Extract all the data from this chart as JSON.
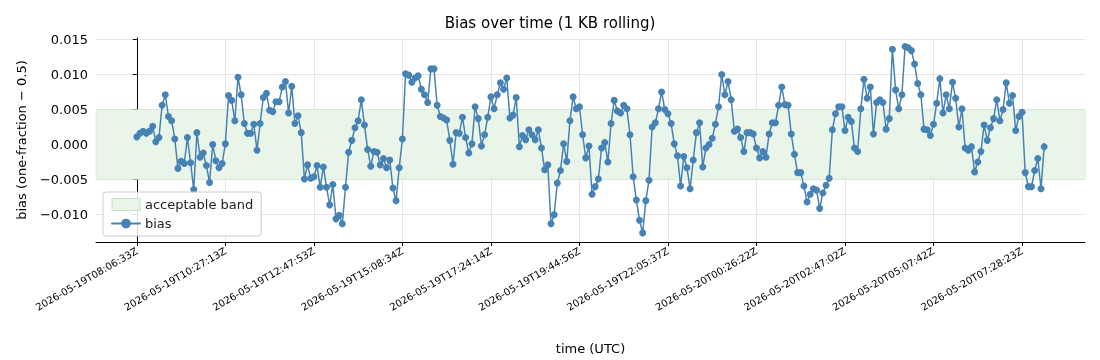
{
  "chart_data": {
    "type": "line",
    "title": "Bias over time (1 KB rolling)",
    "xlabel": "time (UTC)",
    "ylabel": "bias (one-fraction − 0.5)",
    "categories": [
      "2026-05-19T08:06:33Z",
      null,
      null,
      null,
      null,
      null,
      null,
      null,
      null,
      null,
      null,
      null,
      null,
      null,
      null,
      null,
      null,
      null,
      null,
      null,
      null,
      null,
      null,
      null,
      null,
      null,
      null,
      null,
      "2026-05-19T10:27:13Z",
      null,
      null,
      null,
      null,
      null,
      null,
      null,
      null,
      null,
      null,
      null,
      null,
      null,
      null,
      null,
      null,
      null,
      null,
      null,
      null,
      null,
      null,
      null,
      null,
      null,
      null,
      null,
      "2026-05-19T12:47:53Z",
      null,
      null,
      null,
      null,
      null,
      null,
      null,
      null,
      null,
      null,
      null,
      null,
      null,
      null,
      null,
      null,
      null,
      null,
      null,
      null,
      null,
      null,
      null,
      null,
      null,
      null,
      null,
      "2026-05-19T15:08:34Z",
      null,
      null,
      null,
      null,
      null,
      null,
      null,
      null,
      null,
      null,
      null,
      null,
      null,
      null,
      null,
      null,
      null,
      null,
      null,
      null,
      null,
      null,
      null,
      null,
      null,
      null,
      null,
      "2026-05-19T17:24:14Z",
      null,
      null,
      null,
      null,
      null,
      null,
      null,
      null,
      null,
      null,
      null,
      null,
      null,
      null,
      null,
      null,
      null,
      null,
      null,
      null,
      null,
      null,
      null,
      null,
      null,
      null,
      null,
      "2026-05-19T19:44:56Z",
      null,
      null,
      null,
      null,
      null,
      null,
      null,
      null,
      null,
      null,
      null,
      null,
      null,
      null,
      null,
      null,
      null,
      null,
      null,
      null,
      null,
      null,
      null,
      null,
      null,
      null,
      null,
      "2026-05-19T22:05:37Z",
      null,
      null,
      null,
      null,
      null,
      null,
      null,
      null,
      null,
      null,
      null,
      null,
      null,
      null,
      null,
      null,
      null,
      null,
      null,
      null,
      null,
      null,
      null,
      null,
      null,
      null,
      null,
      "2026-05-20T00:26:22Z",
      null,
      null,
      null,
      null,
      null,
      null,
      null,
      null,
      null,
      null,
      null,
      null,
      null,
      null,
      null,
      null,
      null,
      null,
      null,
      null,
      null,
      null,
      null,
      null,
      null,
      null,
      null,
      "2026-05-20T02:47:02Z",
      null,
      null,
      null,
      null,
      null,
      null,
      null,
      null,
      null,
      null,
      null,
      null,
      null,
      null,
      null,
      null,
      null,
      null,
      null,
      null,
      null,
      null,
      null,
      null,
      null,
      null,
      null,
      "2026-05-20T05:07:42Z",
      null,
      null,
      null,
      null,
      null,
      null,
      null,
      null,
      null,
      null,
      null,
      null,
      null,
      null,
      null,
      null,
      null,
      null,
      null,
      null,
      null,
      null,
      null,
      null,
      null,
      null,
      null,
      "2026-05-20T07:28:23Z",
      null,
      null,
      null,
      null,
      null,
      null,
      null
    ],
    "series": [
      {
        "name": "bias",
        "color": "#4682b4",
        "values": [
          0.0011,
          0.0016,
          0.0019,
          0.0016,
          0.0019,
          0.0026,
          0.0004,
          0.001,
          0.0056,
          0.0071,
          0.004,
          0.0034,
          0.0008,
          -0.0034,
          -0.0024,
          -0.0027,
          0.001,
          -0.0026,
          -0.0064,
          0.0017,
          -0.0018,
          -0.0012,
          -0.003,
          -0.0054,
          0,
          -0.0023,
          -0.0033,
          -0.0027,
          0.0001,
          0.007,
          0.0063,
          0.0034,
          0.0096,
          0.0071,
          0.003,
          0.0016,
          0.0016,
          0.0029,
          -0.0008,
          0.003,
          0.0067,
          0.0073,
          0.0049,
          0.0047,
          0.0061,
          0.0061,
          0.0082,
          0.009,
          0.0045,
          0.0083,
          0.003,
          0.0041,
          0.0017,
          -0.0049,
          -0.0029,
          -0.0048,
          -0.0046,
          -0.003,
          -0.0061,
          -0.0032,
          -0.0061,
          -0.0086,
          -0.0057,
          -0.0106,
          -0.0101,
          -0.0113,
          -0.0061,
          -0.0011,
          0.0006,
          0.0024,
          0.0034,
          0.0064,
          0.0028,
          -0.0007,
          -0.0031,
          -0.001,
          -0.0011,
          -0.0029,
          -0.002,
          -0.0033,
          -0.0022,
          -0.0062,
          -0.008,
          -0.0033,
          0.0008,
          0.0101,
          0.0099,
          0.0089,
          0.0095,
          0.0098,
          0.0079,
          0.0071,
          0.006,
          0.0108,
          0.0108,
          0.0056,
          0.004,
          0.0038,
          0.0035,
          0.0006,
          -0.0028,
          0.0017,
          0.0016,
          0.0039,
          0.001,
          -0.0012,
          0.0001,
          0.0054,
          0.0037,
          -0.0002,
          0.0014,
          0.0039,
          0.0068,
          0.0051,
          0.0071,
          0.0088,
          0.0079,
          0.0095,
          0.0038,
          0.0042,
          0.0067,
          -0.0003,
          0.0013,
          0.0007,
          0.0021,
          0.0014,
          0.0007,
          0.0021,
          -0.0005,
          -0.0036,
          -0.0029,
          -0.0113,
          -0.01,
          -0.0055,
          -0.0037,
          0.0001,
          -0.0024,
          0.0034,
          0.0068,
          0.0051,
          0.0054,
          0.0014,
          -0.0019,
          -0.0002,
          -0.0071,
          -0.006,
          -0.0049,
          -0.0005,
          0.0003,
          -0.0025,
          0.003,
          0.0063,
          0.0048,
          0.0045,
          0.0056,
          0.0051,
          0.0014,
          -0.0046,
          -0.0079,
          -0.0108,
          -0.0126,
          -0.008,
          -0.0051,
          0.0025,
          0.0031,
          0.0051,
          0.0075,
          0.005,
          0.0044,
          0.003,
          0.0001,
          -0.0016,
          -0.0059,
          -0.0017,
          -0.0033,
          -0.0063,
          -0.0022,
          0.0017,
          0.0031,
          -0.0032,
          -0.0005,
          0,
          0.0009,
          0.0029,
          0.0054,
          0.01,
          0.0071,
          0.009,
          0.0064,
          0.0019,
          0.0022,
          0.001,
          -0.001,
          0.0017,
          0.0017,
          0.0015,
          -0.0005,
          -0.0019,
          -0.001,
          -0.0018,
          0.0015,
          0.0031,
          0.0031,
          0.0056,
          0.0082,
          0.0057,
          0.0056,
          0.0015,
          -0.0014,
          -0.004,
          -0.004,
          -0.0059,
          -0.0082,
          -0.0071,
          -0.0063,
          -0.0065,
          -0.0091,
          -0.0069,
          -0.0058,
          -0.0048,
          0.0021,
          0.0044,
          0.0054,
          0.0054,
          0.002,
          0.0039,
          0.0033,
          -0.0005,
          -0.001,
          0.0051,
          0.0093,
          0.0066,
          0.0082,
          0.0015,
          0.006,
          0.0064,
          0.006,
          0.0022,
          0.0037,
          0.0136,
          0.0078,
          0.0051,
          0.0071,
          0.014,
          0.0138,
          0.0134,
          0.0115,
          0.0087,
          0.0071,
          0.0022,
          0.0021,
          0.0013,
          0.0029,
          0.0059,
          0.0094,
          0.0045,
          0.0071,
          0.0051,
          0.0089,
          0.0066,
          0.0025,
          0.0051,
          -0.0005,
          -0.0008,
          -0.0003,
          -0.0039,
          -0.0025,
          -0.001,
          0.0028,
          0.0006,
          0.0024,
          0.0037,
          0.0064,
          0.0034,
          0.005,
          0.0088,
          0.0059,
          0.007,
          0.002,
          0.004,
          0.0046,
          -0.004,
          -0.006,
          -0.006,
          -0.0037,
          -0.002,
          -0.0063,
          -0.0003
        ]
      }
    ],
    "bands": [
      {
        "axis": "y",
        "from": -0.005,
        "to": 0.005,
        "label": "acceptable band",
        "color": "#eaf5ea"
      }
    ],
    "ylim": [
      -0.0139,
      0.0152
    ],
    "yticks": [
      {
        "value": -0.01,
        "label": "−0.010"
      },
      {
        "value": -0.005,
        "label": "−0.005"
      },
      {
        "value": 0,
        "label": "0.000"
      },
      {
        "value": 0.005,
        "label": "0.005"
      },
      {
        "value": 0.01,
        "label": "0.010"
      },
      {
        "value": 0.015,
        "label": "0.015"
      }
    ],
    "grid": true,
    "legend": "bottom left",
    "marker": "circle",
    "line_style": "solid"
  }
}
